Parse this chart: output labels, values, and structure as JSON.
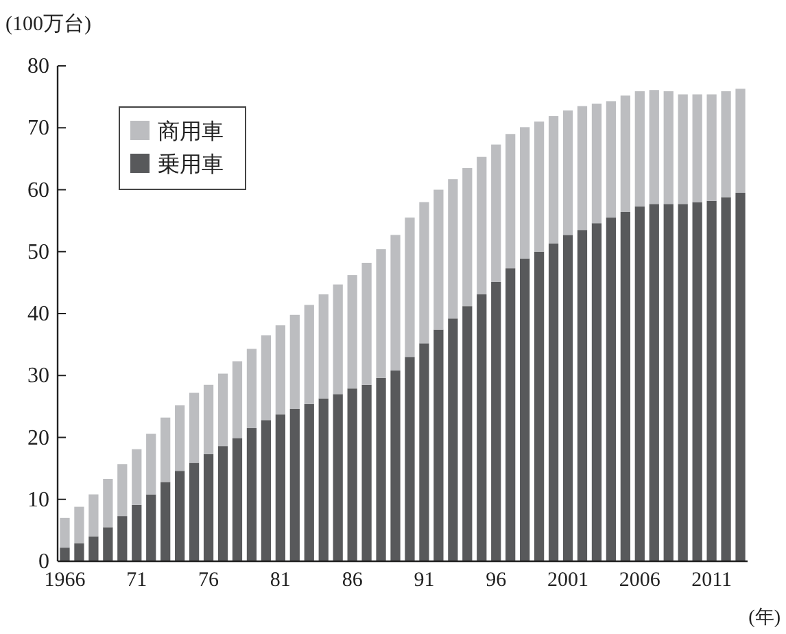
{
  "chart_data": {
    "type": "bar",
    "stacked": true,
    "ylabel": "(100万台)",
    "xlabel": "(年)",
    "categories": [
      "1966",
      null,
      null,
      null,
      null,
      "71",
      null,
      null,
      null,
      null,
      "76",
      null,
      null,
      null,
      null,
      "81",
      null,
      null,
      null,
      null,
      "86",
      null,
      null,
      null,
      null,
      "91",
      null,
      null,
      null,
      null,
      "96",
      null,
      null,
      null,
      null,
      "2001",
      null,
      null,
      null,
      null,
      "2006",
      null,
      null,
      null,
      null,
      "2011",
      null,
      null
    ],
    "series": [
      {
        "name": "乗用車",
        "color": "#58595b",
        "values": [
          2.2,
          2.9,
          4.0,
          5.5,
          7.3,
          9.1,
          10.8,
          12.8,
          14.6,
          15.9,
          17.3,
          18.6,
          19.9,
          21.5,
          22.8,
          23.7,
          24.6,
          25.4,
          26.3,
          27.0,
          27.9,
          28.5,
          29.6,
          30.8,
          33.0,
          35.2,
          37.4,
          39.2,
          41.2,
          43.1,
          45.1,
          47.3,
          48.9,
          50.0,
          51.3,
          52.7,
          53.5,
          54.6,
          55.5,
          56.4,
          57.3,
          57.7,
          57.7,
          57.7,
          58.0,
          58.2,
          58.8,
          59.5
        ]
      },
      {
        "name": "商用車",
        "color": "#bcbdc0",
        "values": [
          4.8,
          5.9,
          6.8,
          7.8,
          8.4,
          9.0,
          9.8,
          10.4,
          10.6,
          11.3,
          11.2,
          11.7,
          12.4,
          12.8,
          13.7,
          14.4,
          15.2,
          16.0,
          16.8,
          17.7,
          18.3,
          19.7,
          20.8,
          21.9,
          22.5,
          22.8,
          22.6,
          22.5,
          22.3,
          22.2,
          22.2,
          21.7,
          21.2,
          21.0,
          20.6,
          20.1,
          20.0,
          19.3,
          18.8,
          18.8,
          18.6,
          18.4,
          18.2,
          17.7,
          17.4,
          17.2,
          17.1,
          16.8
        ]
      }
    ],
    "ylim": [
      0,
      80
    ],
    "yticks": [
      0,
      10,
      20,
      30,
      40,
      50,
      60,
      70,
      80
    ],
    "legend": "top left",
    "grid": false
  }
}
